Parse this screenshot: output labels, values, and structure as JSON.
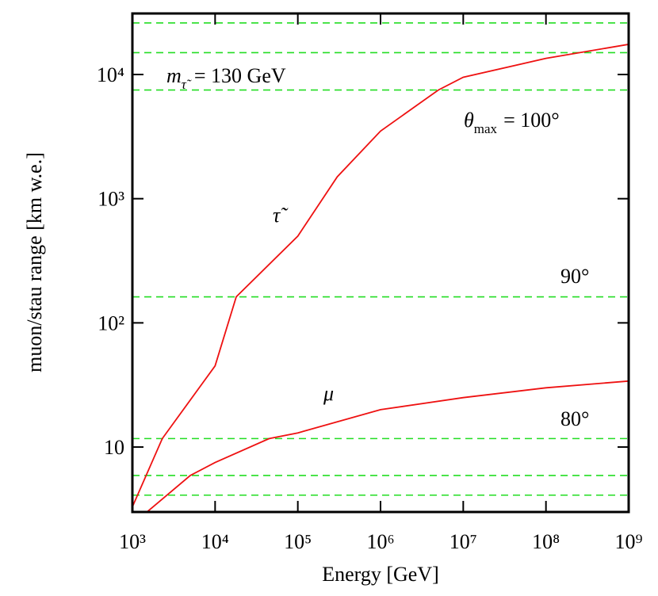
{
  "chart_data": {
    "type": "line",
    "x_label": "Energy [GeV]",
    "y_label": "muon/stau range [km w.e.]",
    "log_x": true,
    "log_y": true,
    "xlim": [
      1000,
      1000000000
    ],
    "ylim": [
      3,
      31000
    ],
    "xticks": [
      {
        "value": 1000,
        "label": "10³"
      },
      {
        "value": 10000,
        "label": "10⁴"
      },
      {
        "value": 100000,
        "label": "10⁵"
      },
      {
        "value": 1000000,
        "label": "10⁶"
      },
      {
        "value": 10000000,
        "label": "10⁷"
      },
      {
        "value": 100000000,
        "label": "10⁸"
      },
      {
        "value": 1000000000,
        "label": "10⁹"
      }
    ],
    "yticks": [
      10,
      {
        "value": 100,
        "label": "10²"
      },
      {
        "value": 1000,
        "label": "10³"
      },
      {
        "value": 10000,
        "label": "10⁴"
      }
    ],
    "hlines": [
      26000,
      15000,
      7500,
      162,
      11.7,
      5.9,
      4.1
    ],
    "hline_color": "#22dd22",
    "series": [
      {
        "name": "τ̃",
        "color": "#ee1111",
        "x": [
          1000,
          2300,
          10000,
          18000,
          100000,
          300000,
          1000000,
          5000000,
          10000000,
          100000000,
          1000000000
        ],
        "values": [
          3.3,
          11.7,
          45,
          162,
          500,
          1500,
          3500,
          7500,
          9500,
          13500,
          17500
        ]
      },
      {
        "name": "μ",
        "color": "#ee1111",
        "x": [
          1500,
          5000,
          10000,
          45000,
          100000,
          1000000,
          10000000,
          100000000,
          1000000000
        ],
        "values": [
          3.0,
          5.9,
          7.5,
          11.7,
          13,
          20,
          25,
          30,
          34
        ]
      }
    ],
    "annotations": [
      {
        "text": "m",
        "subscript": "τ̃",
        "suffix": "= 130 GeV"
      },
      {
        "text": "θ",
        "subscript": "max",
        "suffix": "= 100°"
      },
      {
        "text": "90°"
      },
      {
        "text": "80°"
      }
    ]
  }
}
